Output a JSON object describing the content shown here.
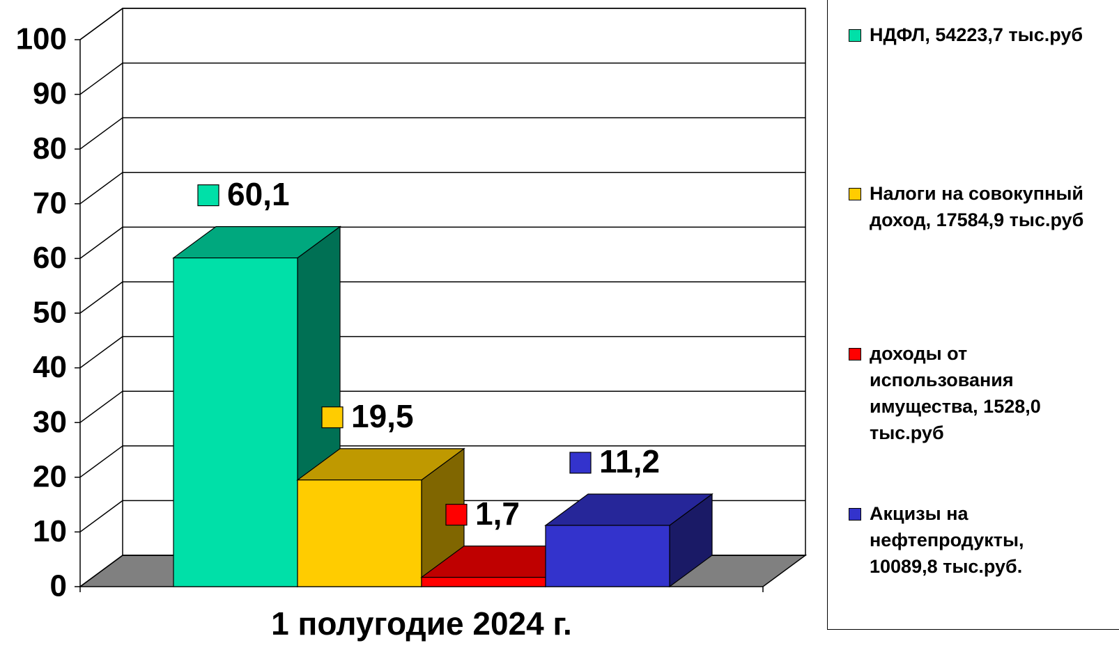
{
  "chart_data": {
    "type": "bar3d",
    "categories": [
      "1 полугодие 2024 г."
    ],
    "series": [
      {
        "name": "НДФЛ, 54223,7 тыс.руб",
        "color": "#00e0a8",
        "values": [
          60.1
        ],
        "value_labels": [
          "60,1"
        ]
      },
      {
        "name": "Налоги на совокупный доход, 17584,9 тыс.руб",
        "color": "#ffcc00",
        "values": [
          19.5
        ],
        "value_labels": [
          "19,5"
        ]
      },
      {
        "name": "доходы от использования имущества, 1528,0 тыс.руб",
        "color": "#ff0000",
        "values": [
          1.7
        ],
        "value_labels": [
          "1,7"
        ]
      },
      {
        "name": "Акцизы на нефтепродукты, 10089,8 тыс.руб.",
        "color": "#3333cc",
        "values": [
          11.2
        ],
        "value_labels": [
          "11,2"
        ]
      }
    ],
    "ylim": [
      0,
      100
    ],
    "yticks": [
      0,
      10,
      20,
      30,
      40,
      50,
      60,
      70,
      80,
      90,
      100
    ],
    "grid": true,
    "legend": "right"
  }
}
